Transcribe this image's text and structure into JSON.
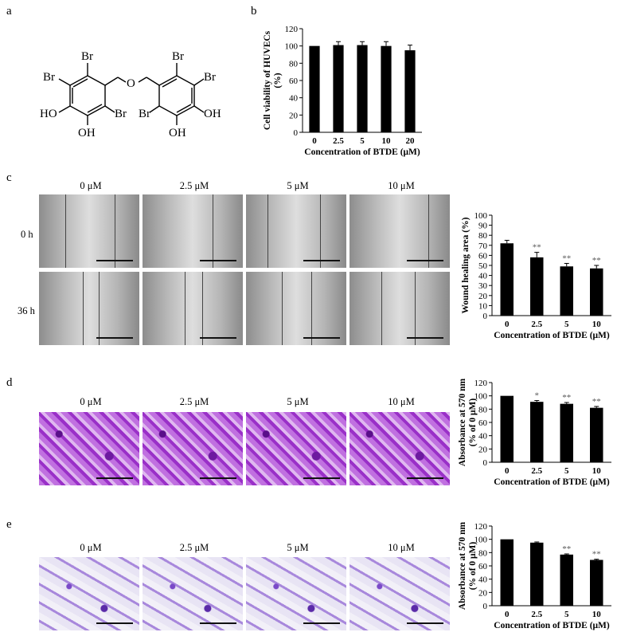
{
  "panels": {
    "a": "a",
    "b": "b",
    "c": "c",
    "d": "d",
    "e": "e"
  },
  "structure": {
    "labels": [
      "Br",
      "Br",
      "O",
      "Br",
      "Br",
      "HO",
      "Br",
      "Br",
      "OH",
      "OH",
      "OH"
    ]
  },
  "image_grid": {
    "concentrations": [
      "0 μM",
      "2.5 μM",
      "5 μM",
      "10 μM"
    ],
    "time_labels": [
      "0 h",
      "36 h"
    ]
  },
  "colors": {
    "bar": "#000000",
    "axis": "#000000",
    "wound_bg": "#d6d6d6",
    "stain_d": "#a040c8",
    "stain_e": "#9a7ad0"
  },
  "chart_data": [
    {
      "type": "bar",
      "ylabel": "Cell viability of HUVECs (%)",
      "xlabel": "Concentration of BTDE (μM)",
      "categories": [
        "0",
        "2.5",
        "5",
        "10",
        "20"
      ],
      "values": [
        100,
        101,
        101,
        100,
        95
      ],
      "errors": [
        0,
        4,
        4,
        5,
        6
      ],
      "significance": [
        "",
        "",
        "",
        "",
        ""
      ],
      "ylim": [
        0,
        120
      ],
      "yticks": [
        0,
        20,
        40,
        60,
        80,
        100,
        120
      ]
    },
    {
      "type": "bar",
      "ylabel": "Wound healing area (%)",
      "xlabel": "Concentration of BTDE (μM)",
      "categories": [
        "0",
        "2.5",
        "5",
        "10"
      ],
      "values": [
        72,
        58,
        49,
        47
      ],
      "errors": [
        3,
        5,
        3,
        3
      ],
      "significance": [
        "",
        "**",
        "**",
        "**"
      ],
      "ylim": [
        0,
        100
      ],
      "yticks": [
        0,
        10,
        20,
        30,
        40,
        50,
        60,
        70,
        80,
        90,
        100
      ]
    },
    {
      "type": "bar",
      "ylabel": "Absorbance at 570 nm (% of 0 μM)",
      "xlabel": "Concentration of BTDE (μM)",
      "categories": [
        "0",
        "2.5",
        "5",
        "10"
      ],
      "values": [
        100,
        91,
        88,
        82
      ],
      "errors": [
        0,
        2,
        2,
        2
      ],
      "significance": [
        "",
        "*",
        "**",
        "**"
      ],
      "ylim": [
        0,
        120
      ],
      "yticks": [
        0,
        20,
        40,
        60,
        80,
        100,
        120
      ]
    },
    {
      "type": "bar",
      "ylabel": "Absorbance at 570 nm (% of 0 μM)",
      "xlabel": "Concentration of BTDE (μM)",
      "categories": [
        "0",
        "2.5",
        "5",
        "10"
      ],
      "values": [
        100,
        95,
        77,
        69
      ],
      "errors": [
        0,
        1,
        1,
        1
      ],
      "significance": [
        "",
        "",
        "**",
        "**"
      ],
      "ylim": [
        0,
        120
      ],
      "yticks": [
        0,
        20,
        40,
        60,
        80,
        100,
        120
      ]
    }
  ]
}
